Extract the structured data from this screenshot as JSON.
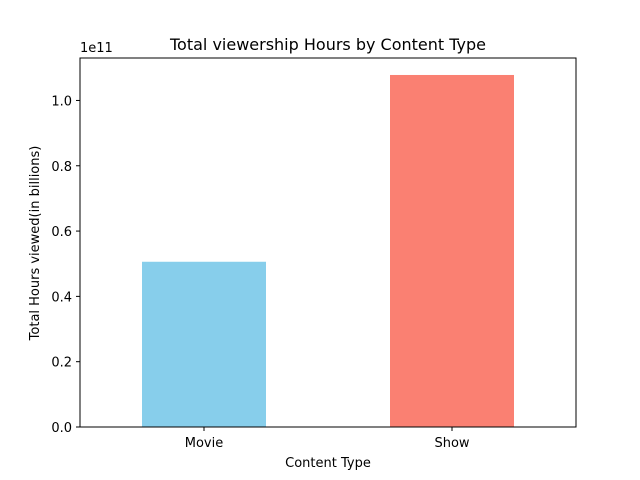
{
  "chart_data": {
    "type": "bar",
    "title": "Total viewership Hours by Content Type",
    "xlabel": "Content Type",
    "ylabel": "Total Hours viewed(in billions)",
    "categories": [
      "Movie",
      "Show"
    ],
    "values": [
      50600000000,
      107800000000
    ],
    "colors": [
      "#87CEEB",
      "#FA8072"
    ],
    "ylim": [
      0,
      113000000000
    ],
    "y_ticks": [
      0,
      20000000000,
      40000000000,
      60000000000,
      80000000000,
      100000000000
    ],
    "y_tick_labels": [
      "0.0",
      "0.2",
      "0.4",
      "0.6",
      "0.8",
      "1.0"
    ],
    "y_offset_label": "1e11",
    "grid": false,
    "legend": "none"
  }
}
